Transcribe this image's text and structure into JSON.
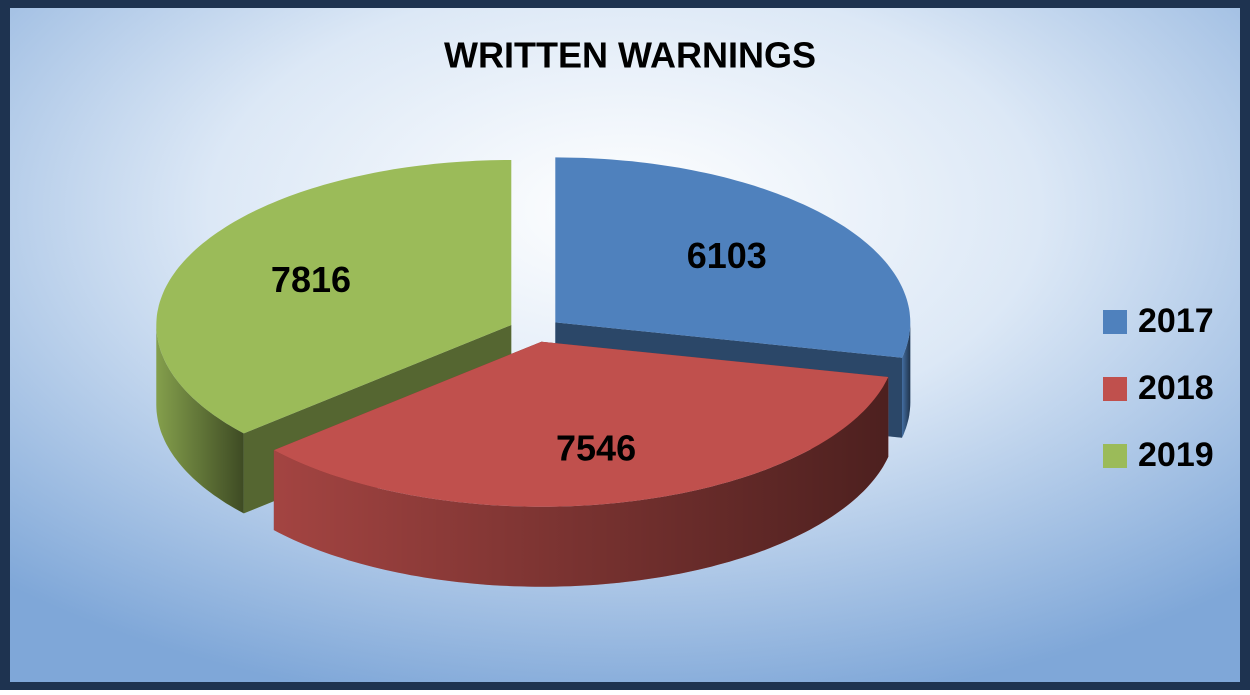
{
  "chart_data": {
    "type": "pie3d",
    "title": "WRITTEN WARNINGS",
    "categories": [
      "2017",
      "2018",
      "2019"
    ],
    "values": [
      6103,
      7546,
      7816
    ],
    "colors": [
      "#4f81bd",
      "#c0504d",
      "#9bbb59"
    ],
    "legend": "right"
  }
}
